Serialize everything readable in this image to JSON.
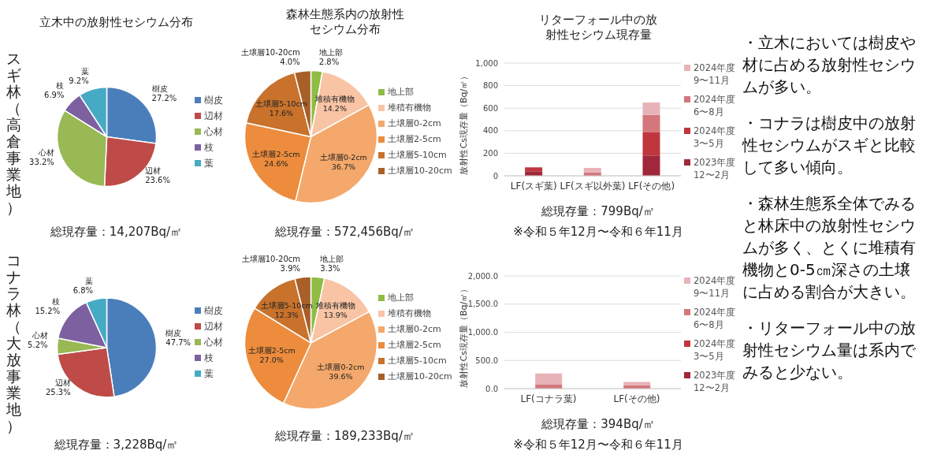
{
  "chart_data": [
    {
      "type": "pie",
      "title": "立木中の放射性セシウム分布",
      "ylabel": "スギ林（高倉事業地）",
      "categories": [
        "樹皮",
        "辺材",
        "心材",
        "枝",
        "葉"
      ],
      "values": [
        27.2,
        23.6,
        33.2,
        6.9,
        9.2
      ],
      "value_labels": [
        "27.2%",
        "23.6%",
        "33.2%",
        "6.9%",
        "9.2%"
      ],
      "colors": [
        "#4a7ebb",
        "#be4b48",
        "#98b954",
        "#7d60a0",
        "#46aac5"
      ],
      "legend": "right",
      "annotations": [
        "総現存量：14,207Bq/㎡"
      ]
    },
    {
      "type": "pie",
      "title": "森林生態系内の放射性セシウム分布",
      "categories": [
        "地上部",
        "堆積有機物",
        "土壌層0-2cm",
        "土壌層2-5cm",
        "土壌層5-10cm",
        "土壌層10-20cm"
      ],
      "values": [
        2.8,
        14.2,
        36.7,
        24.6,
        17.6,
        4.0
      ],
      "value_labels": [
        "2.8%",
        "14.2%",
        "36.7%",
        "24.6%",
        "17.6%",
        "4.0%"
      ],
      "colors": [
        "#8fbc45",
        "#f8c4a4",
        "#f4a86b",
        "#ec8c3c",
        "#c8722c",
        "#a85f28"
      ],
      "legend": "right",
      "annotations": [
        "総現存量：572,456Bq/㎡"
      ]
    },
    {
      "type": "bar",
      "title": "リターフォール中の放射性セシウム現存量",
      "ylabel": "放射性Cs現存量（Bq/㎡）",
      "categories": [
        "LF(スギ葉)",
        "LF(スギ以外葉)",
        "LF(その他)"
      ],
      "stacked": true,
      "ylim": [
        0,
        1000
      ],
      "yticks": [
        0,
        200,
        400,
        600,
        800,
        {
          "value": 1000,
          "label": "1,000"
        }
      ],
      "grid": "y",
      "legend": "right",
      "series": [
        {
          "name": "2023年度 12〜2月",
          "color": "#a0283a",
          "values": [
            40,
            0,
            180
          ]
        },
        {
          "name": "2024年度 3〜5月",
          "color": "#c0363f",
          "values": [
            35,
            null,
            205
          ]
        },
        {
          "name": "2024年度 6〜8月",
          "color": "#d4767c",
          "values": [
            0,
            30,
            155
          ]
        },
        {
          "name": "2024年度 9〜11月",
          "color": "#e8b3b8",
          "values": [
            0,
            40,
            110
          ]
        }
      ],
      "annotations": [
        "総現存量：799Bq/㎡",
        "※令和５年12月〜令和６年11月"
      ]
    },
    {
      "type": "other",
      "annotations": [
        "・立木においては樹皮や材に占める放射性セシウムが多い。",
        "・コナラは樹皮中の放射性セシウムがスギと比較して多い傾向。",
        "・森林生態系全体でみると林床中の放射性セシウムが多く、とくに堆積有機物と0-5㎝深さの土壌に占める割合が大きい。",
        "・リターフォール中の放射性セシウム量は系内でみると少ない。"
      ]
    },
    {
      "type": "pie",
      "ylabel": "コナラ林（大放事業地）",
      "categories": [
        "樹皮",
        "辺材",
        "心材",
        "枝",
        "葉"
      ],
      "values": [
        47.7,
        25.3,
        5.2,
        15.2,
        6.8
      ],
      "value_labels": [
        "47.7%",
        "25.3%",
        "5.2%",
        "15.2%",
        "6.8%"
      ],
      "colors": [
        "#4a7ebb",
        "#be4b48",
        "#98b954",
        "#7d60a0",
        "#46aac5"
      ],
      "legend": "right",
      "annotations": [
        "総現存量：3,228Bq/㎡"
      ]
    },
    {
      "type": "pie",
      "categories": [
        "地上部",
        "堆積有機物",
        "土壌層0-2cm",
        "土壌層2-5cm",
        "土壌層5-10cm",
        "土壌層10-20cm"
      ],
      "values": [
        3.3,
        13.9,
        39.6,
        27.0,
        12.3,
        3.9
      ],
      "value_labels": [
        "3.3%",
        "13.9%",
        "39.6%",
        "27.0%",
        "12.3%",
        "3.9%"
      ],
      "colors": [
        "#8fbc45",
        "#f8c4a4",
        "#f4a86b",
        "#ec8c3c",
        "#c8722c",
        "#a85f28"
      ],
      "legend": "right",
      "annotations": [
        "総現存量：189,233Bq/㎡"
      ]
    },
    {
      "type": "bar",
      "ylabel": "放射性Cs現存量（Bq/㎡）",
      "categories": [
        "LF(コナラ葉)",
        "LF(その他)"
      ],
      "stacked": true,
      "ylim": [
        0,
        2000
      ],
      "yticks": [
        {
          "value": 0,
          "label": "0.0"
        },
        {
          "value": 500,
          "label": "500.0"
        },
        {
          "value": 1000,
          "label": "1,000.0"
        },
        {
          "value": 1500,
          "label": "1,500.0"
        },
        {
          "value": 2000,
          "label": "2,000.0"
        }
      ],
      "grid": "y",
      "legend": "right",
      "series": [
        {
          "name": "2023年度 12〜2月",
          "color": "#a0283a",
          "values": [
            null,
            null
          ]
        },
        {
          "name": "2024年度 3〜5月",
          "color": "#c0363f",
          "values": [
            null,
            null
          ]
        },
        {
          "name": "2024年度 6〜8月",
          "color": "#d4767c",
          "values": [
            70,
            60
          ]
        },
        {
          "name": "2024年度 9〜11月",
          "color": "#e8b3b8",
          "values": [
            200,
            60
          ]
        }
      ],
      "annotations": [
        "総現存量：394Bq/㎡",
        "※令和５年12月〜令和６年11月"
      ]
    }
  ]
}
